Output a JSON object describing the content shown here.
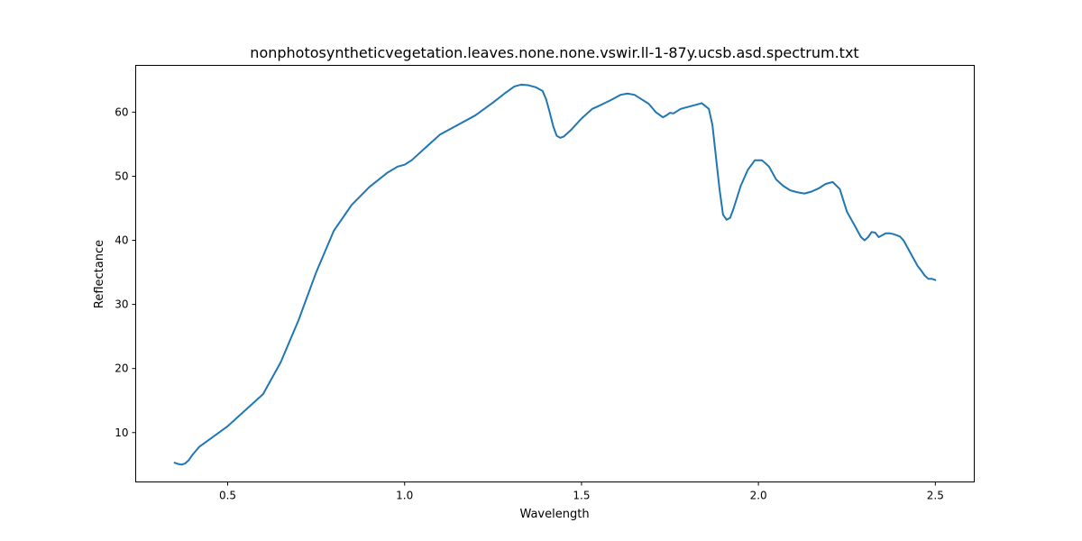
{
  "chart_data": {
    "type": "line",
    "title": "nonphotosyntheticvegetation.leaves.none.none.vswir.ll-1-87y.ucsb.asd.spectrum.txt",
    "xlabel": "Wavelength",
    "ylabel": "Reflectance",
    "xlim": [
      0.24,
      2.61
    ],
    "ylim": [
      2.3,
      67.3
    ],
    "xticks": [
      0.5,
      1.0,
      1.5,
      2.0,
      2.5
    ],
    "xtick_labels": [
      "0.5",
      "1.0",
      "1.5",
      "2.0",
      "2.5"
    ],
    "yticks": [
      10,
      20,
      30,
      40,
      50,
      60
    ],
    "ytick_labels": [
      "10",
      "20",
      "30",
      "40",
      "50",
      "60"
    ],
    "grid": false,
    "line_color": "#1f77b4",
    "series": [
      {
        "x": [
          0.35,
          0.36,
          0.37,
          0.38,
          0.39,
          0.4,
          0.42,
          0.45,
          0.5,
          0.55,
          0.6,
          0.65,
          0.7,
          0.75,
          0.8,
          0.85,
          0.9,
          0.95,
          0.98,
          1.0,
          1.02,
          1.05,
          1.1,
          1.15,
          1.2,
          1.25,
          1.28,
          1.31,
          1.33,
          1.35,
          1.37,
          1.39,
          1.4,
          1.41,
          1.42,
          1.43,
          1.44,
          1.45,
          1.47,
          1.5,
          1.53,
          1.55,
          1.58,
          1.61,
          1.63,
          1.65,
          1.67,
          1.69,
          1.71,
          1.73,
          1.74,
          1.75,
          1.76,
          1.78,
          1.8,
          1.82,
          1.84,
          1.86,
          1.87,
          1.88,
          1.89,
          1.9,
          1.91,
          1.92,
          1.93,
          1.95,
          1.97,
          1.99,
          2.01,
          2.03,
          2.05,
          2.07,
          2.09,
          2.11,
          2.13,
          2.15,
          2.17,
          2.19,
          2.21,
          2.23,
          2.25,
          2.27,
          2.29,
          2.3,
          2.31,
          2.32,
          2.33,
          2.34,
          2.35,
          2.36,
          2.37,
          2.38,
          2.39,
          2.4,
          2.41,
          2.42,
          2.43,
          2.44,
          2.45,
          2.46,
          2.47,
          2.48,
          2.49,
          2.5
        ],
        "y": [
          5.3,
          5.1,
          5.0,
          5.2,
          5.7,
          6.5,
          7.8,
          9.0,
          11.0,
          13.5,
          16.0,
          21.0,
          27.5,
          35.0,
          41.5,
          45.5,
          48.3,
          50.5,
          51.5,
          51.8,
          52.5,
          54.0,
          56.5,
          58.0,
          59.5,
          61.5,
          62.8,
          64.0,
          64.3,
          64.2,
          63.9,
          63.3,
          62.0,
          60.0,
          57.8,
          56.3,
          56.0,
          56.2,
          57.2,
          59.0,
          60.5,
          61.0,
          61.8,
          62.7,
          62.9,
          62.7,
          62.0,
          61.3,
          60.0,
          59.2,
          59.5,
          59.9,
          59.8,
          60.5,
          60.8,
          61.1,
          61.4,
          60.5,
          58.0,
          53.0,
          48.0,
          44.0,
          43.2,
          43.5,
          45.0,
          48.5,
          51.0,
          52.5,
          52.5,
          51.5,
          49.5,
          48.5,
          47.8,
          47.5,
          47.3,
          47.6,
          48.1,
          48.8,
          49.1,
          48.0,
          44.5,
          42.5,
          40.5,
          40.0,
          40.5,
          41.3,
          41.2,
          40.5,
          40.8,
          41.1,
          41.1,
          41.0,
          40.8,
          40.6,
          40.0,
          39.0,
          38.0,
          37.0,
          36.0,
          35.3,
          34.5,
          34.0,
          34.0,
          33.8
        ]
      }
    ]
  }
}
